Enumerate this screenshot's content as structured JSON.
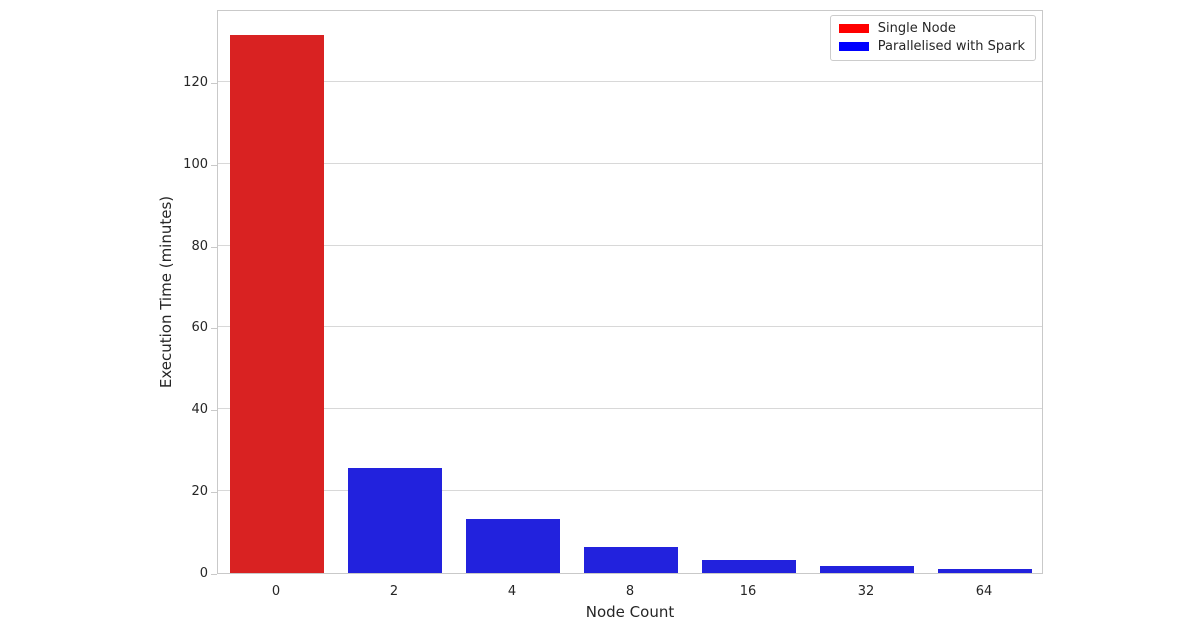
{
  "figure": {
    "background": "#ffffff",
    "text_color": "#262626",
    "grid_color": "#d8d8d8",
    "spine_color": "#c9c9c9"
  },
  "chart_data": {
    "type": "bar",
    "title": "",
    "xlabel": "Node Count",
    "ylabel": "Execution Time (minutes)",
    "categories": [
      "0",
      "2",
      "4",
      "8",
      "16",
      "32",
      "64"
    ],
    "values": [
      131.4,
      25.6,
      13.1,
      6.4,
      3.3,
      1.8,
      1.0
    ],
    "bar_colors": [
      "#d92222",
      "#2222dd",
      "#2222dd",
      "#2222dd",
      "#2222dd",
      "#2222dd",
      "#2222dd"
    ],
    "yticks": [
      0,
      20,
      40,
      60,
      80,
      100,
      120
    ],
    "ylim": [
      0,
      137.8
    ],
    "grid": "horizontal",
    "legend_position": "upper-right",
    "legend": [
      {
        "label": "Single Node",
        "color": "#ff0000"
      },
      {
        "label": "Parallelised with Spark",
        "color": "#0000ff"
      }
    ]
  }
}
